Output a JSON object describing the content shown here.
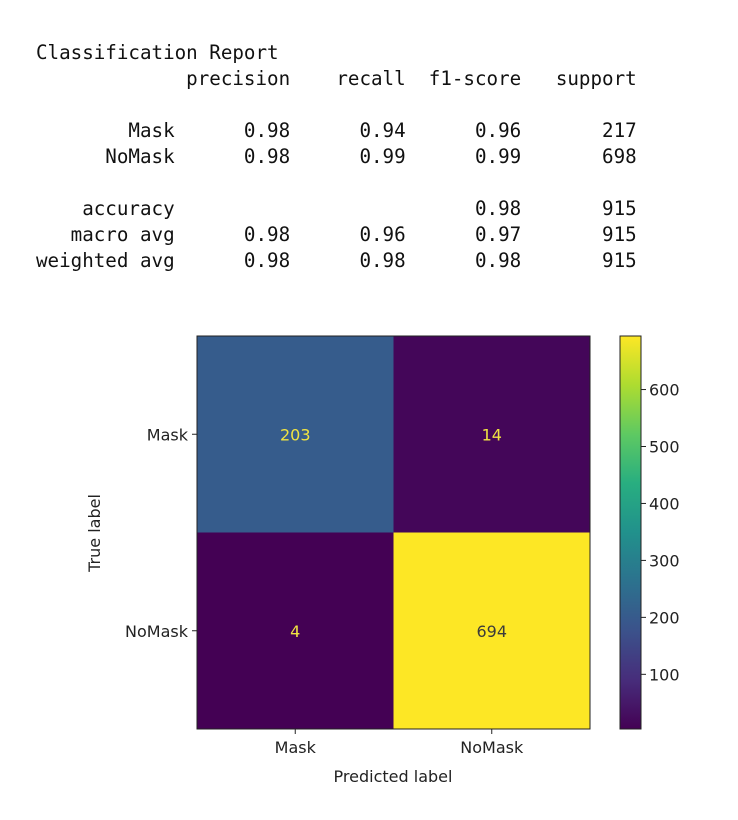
{
  "report": {
    "title": "Classification Report",
    "header": [
      "precision",
      "recall",
      "f1-score",
      "support"
    ],
    "rows": [
      {
        "label": "Mask",
        "values": [
          "0.98",
          "0.94",
          "0.96",
          "217"
        ]
      },
      {
        "label": "NoMask",
        "values": [
          "0.98",
          "0.99",
          "0.99",
          "698"
        ]
      },
      {
        "label": "",
        "values": [
          "",
          "",
          "",
          ""
        ]
      },
      {
        "label": "accuracy",
        "values": [
          "",
          "",
          "0.98",
          "915"
        ]
      },
      {
        "label": "macro avg",
        "values": [
          "0.98",
          "0.96",
          "0.97",
          "915"
        ]
      },
      {
        "label": "weighted avg",
        "values": [
          "0.98",
          "0.98",
          "0.98",
          "915"
        ]
      }
    ]
  },
  "chart_data": {
    "type": "heatmap",
    "title": "",
    "xlabel": "Predicted label",
    "ylabel": "True label",
    "x_categories": [
      "Mask",
      "NoMask"
    ],
    "y_categories": [
      "Mask",
      "NoMask"
    ],
    "values": [
      [
        203,
        14
      ],
      [
        4,
        694
      ]
    ],
    "colormap": "viridis",
    "colorbar": {
      "ticks": [
        100,
        200,
        300,
        400,
        500,
        600
      ],
      "range": [
        4,
        694
      ]
    },
    "text_color_low": "#f0e442",
    "text_color_high": "#3b3b3b",
    "grid": false
  }
}
